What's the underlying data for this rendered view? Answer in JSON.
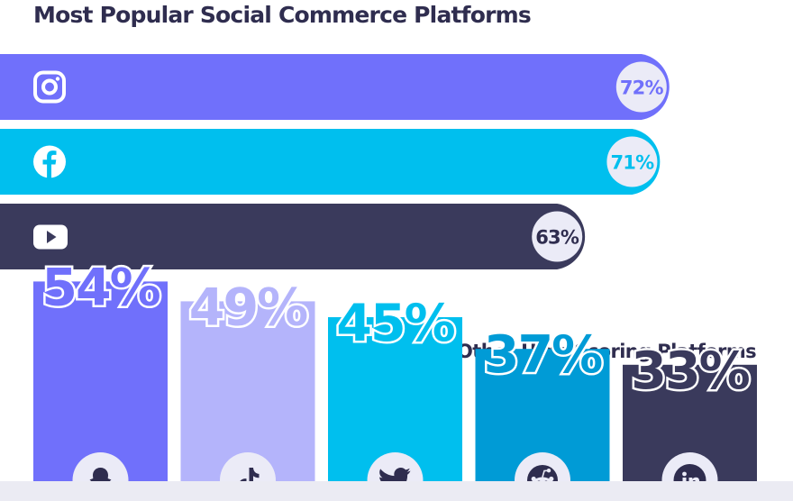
{
  "title": "Most Popular Social Commerce Platforms",
  "chart_data": [
    {
      "type": "bar",
      "orientation": "horizontal",
      "title": "Most Popular Social Commerce Platforms",
      "categories": [
        "Instagram",
        "Facebook",
        "YouTube"
      ],
      "values": [
        72,
        71,
        63
      ],
      "labels": [
        "72%",
        "71%",
        "63%"
      ],
      "icons": [
        "instagram-icon",
        "facebook-icon",
        "youtube-icon"
      ],
      "colors": [
        "#7070fb",
        "#00bfee",
        "#3a3a5c"
      ],
      "ylim": [
        0,
        100
      ]
    },
    {
      "type": "bar",
      "orientation": "vertical",
      "title": "Other High Scoring Platforms",
      "categories": [
        "Snapchat",
        "TikTok",
        "Twitter",
        "Reddit",
        "LinkedIn"
      ],
      "values": [
        54,
        49,
        45,
        37,
        33
      ],
      "labels": [
        "54%",
        "49%",
        "45%",
        "37%",
        "33%"
      ],
      "icons": [
        "snapchat-icon",
        "tiktok-icon",
        "twitter-icon",
        "reddit-icon",
        "linkedin-icon"
      ],
      "colors": [
        "#7070fb",
        "#b4b4fb",
        "#00bfee",
        "#009bd6",
        "#3a3a5c"
      ],
      "ylim": [
        0,
        100
      ]
    }
  ],
  "colors": {
    "text_dark": "#2f2d4f",
    "badge_fill": "#ebebf7",
    "footer": "#ebebf3"
  }
}
